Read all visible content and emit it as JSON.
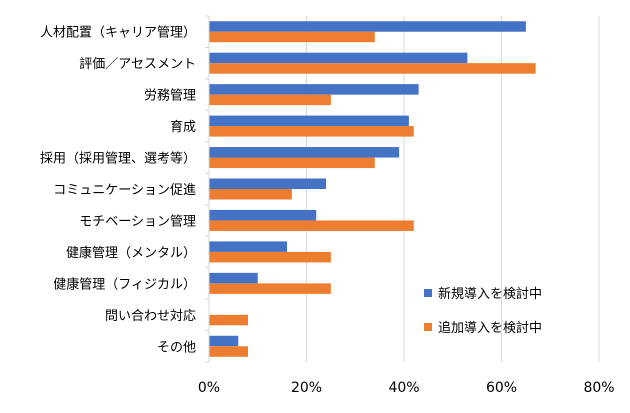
{
  "chart_data": {
    "type": "bar",
    "orientation": "horizontal",
    "categories": [
      "人材配置（キャリア管理）",
      "評価／アセスメント",
      "労務管理",
      "育成",
      "採用（採用管理、選考等）",
      "コミュニケーション促進",
      "モチベーション管理",
      "健康管理（メンタル）",
      "健康管理（フィジカル）",
      "問い合わせ対応",
      "その他"
    ],
    "series": [
      {
        "name": "新規導入を検討中",
        "color": "#4472C4",
        "values": [
          65,
          53,
          43,
          41,
          39,
          24,
          22,
          16,
          10,
          0,
          6
        ]
      },
      {
        "name": "追加導入を検討中",
        "color": "#ED7D31",
        "values": [
          34,
          67,
          25,
          42,
          34,
          17,
          42,
          25,
          25,
          8,
          8
        ]
      }
    ],
    "xlim": [
      0,
      80
    ],
    "xticks": [
      0,
      20,
      40,
      60,
      80
    ],
    "tick_format": "%",
    "grid": true,
    "gridline_color": "#d9d9d9",
    "legend_position": "right-lower",
    "title": "",
    "xlabel": "",
    "ylabel": ""
  }
}
